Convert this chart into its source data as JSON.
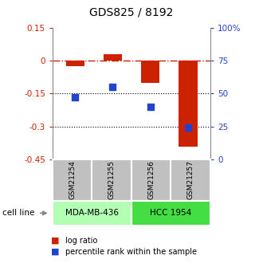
{
  "title": "GDS825 / 8192",
  "samples": [
    "GSM21254",
    "GSM21255",
    "GSM21256",
    "GSM21257"
  ],
  "log_ratio": [
    -0.025,
    0.03,
    -0.1,
    -0.39
  ],
  "percentile_rank": [
    47,
    55,
    40,
    24
  ],
  "cell_lines": [
    {
      "label": "MDA-MB-436",
      "samples": [
        0,
        1
      ],
      "color": "#b3ffb3"
    },
    {
      "label": "HCC 1954",
      "samples": [
        2,
        3
      ],
      "color": "#44dd44"
    }
  ],
  "ylim_left": [
    -0.45,
    0.15
  ],
  "ylim_right": [
    0,
    100
  ],
  "yticks_left": [
    -0.45,
    -0.3,
    -0.15,
    0.0,
    0.15
  ],
  "yticks_right": [
    0,
    25,
    50,
    75,
    100
  ],
  "ytick_labels_left": [
    "-0.45",
    "-0.3",
    "-0.15",
    "0",
    "0.15"
  ],
  "ytick_labels_right": [
    "0",
    "25",
    "50",
    "75",
    "100%"
  ],
  "hlines_dotted": [
    -0.15,
    -0.3
  ],
  "hline_dashdot": 0.0,
  "bar_color": "#cc2200",
  "dot_color": "#2244cc",
  "bar_width": 0.5,
  "dot_size": 40,
  "left_tick_color": "#cc2200",
  "right_tick_color": "#2244cc",
  "legend_red_label": "log ratio",
  "legend_blue_label": "percentile rank within the sample",
  "cell_line_label": "cell line",
  "sample_box_color": "#c0c0c0",
  "background_color": "#ffffff"
}
